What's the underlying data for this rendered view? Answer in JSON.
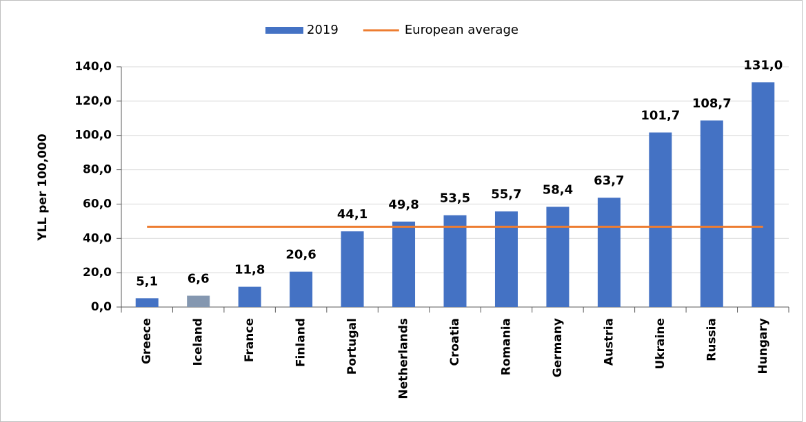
{
  "chart_data": {
    "type": "bar",
    "y_label": "YLL per 100,000",
    "categories": [
      "Greece",
      "Iceland",
      "France",
      "Finland",
      "Portugal",
      "Netherlands",
      "Croatia",
      "Romania",
      "Germany",
      "Austria",
      "Ukraine",
      "Russia",
      "Hungary"
    ],
    "series": [
      {
        "name": "2019",
        "type": "bar",
        "color": "#4472c4",
        "colors": [
          "#4472c4",
          "#8497b0",
          "#4472c4",
          "#4472c4",
          "#4472c4",
          "#4472c4",
          "#4472c4",
          "#4472c4",
          "#4472c4",
          "#4472c4",
          "#4472c4",
          "#4472c4",
          "#4472c4"
        ],
        "values": [
          5.1,
          6.6,
          11.8,
          20.6,
          44.1,
          49.8,
          53.5,
          55.7,
          58.4,
          63.7,
          101.7,
          108.7,
          131.0
        ],
        "value_labels": [
          "5,1",
          "6,6",
          "11,8",
          "20,6",
          "44,1",
          "49,8",
          "53,5",
          "55,7",
          "58,4",
          "63,7",
          "101,7",
          "108,7",
          "131,0"
        ]
      },
      {
        "name": "European average",
        "type": "line",
        "color": "#ed7d31",
        "values": [
          46.8,
          46.8,
          46.8,
          46.8,
          46.8,
          46.8,
          46.8,
          46.8,
          46.8,
          46.8,
          46.8,
          46.8,
          46.8
        ]
      }
    ],
    "ylim": [
      0,
      140
    ],
    "yticks": [
      {
        "value": 0,
        "label": "0,0"
      },
      {
        "value": 20,
        "label": "20,0"
      },
      {
        "value": 40,
        "label": "40,0"
      },
      {
        "value": 60,
        "label": "60,0"
      },
      {
        "value": 80,
        "label": "80,0"
      },
      {
        "value": 100,
        "label": "100,0"
      },
      {
        "value": 120,
        "label": "120,0"
      },
      {
        "value": 140,
        "label": "140,0"
      }
    ],
    "grid": true,
    "legend": "top"
  }
}
